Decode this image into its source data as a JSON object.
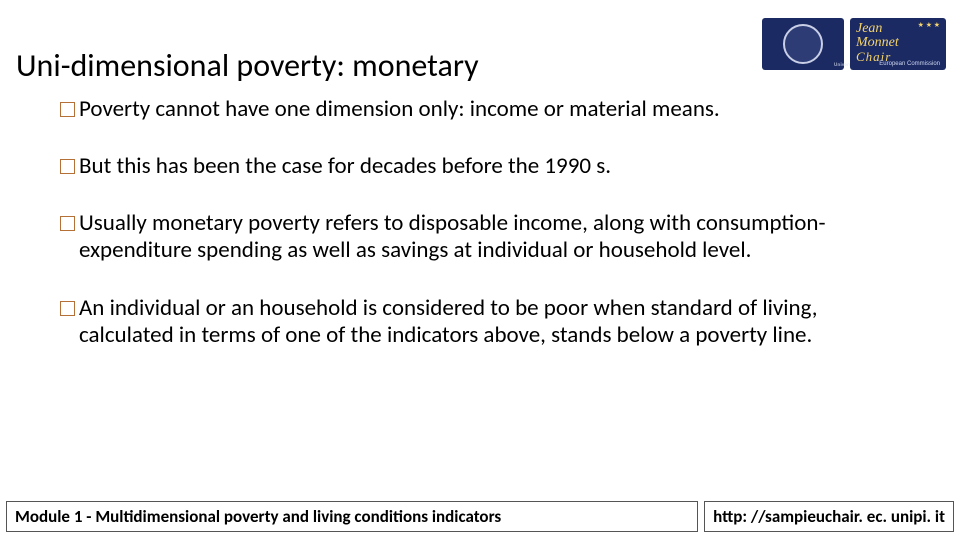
{
  "title": "Uni-dimensional poverty: monetary",
  "logos": {
    "seal_alt": "Università di Pisa",
    "jm_line1": "Jean",
    "jm_line2": "Monnet",
    "jm_line3": "Chair",
    "jm_ec": "European Commission"
  },
  "bullets": [
    "Poverty cannot have one dimension only: income or material means.",
    "But this has been the case for decades before the 1990 s.",
    "Usually monetary poverty refers to disposable income, along with consumption-expenditure spending as well as savings at individual or household level.",
    "An individual or an household is considered to be poor when standard of living, calculated in terms of one of the indicators above, stands below a poverty line."
  ],
  "footer": {
    "module": "Module 1 - Multidimensional poverty and living conditions indicators",
    "url": "http: //sampieuchair. ec. unipi. it"
  },
  "style": {
    "bullet_marker_color": "#b57038",
    "title_fontsize": 32,
    "body_fontsize": 23,
    "footer_fontsize": 17,
    "logo_bg": "#1b2a63",
    "logo_accent": "#f4d36b",
    "background": "#ffffff"
  }
}
